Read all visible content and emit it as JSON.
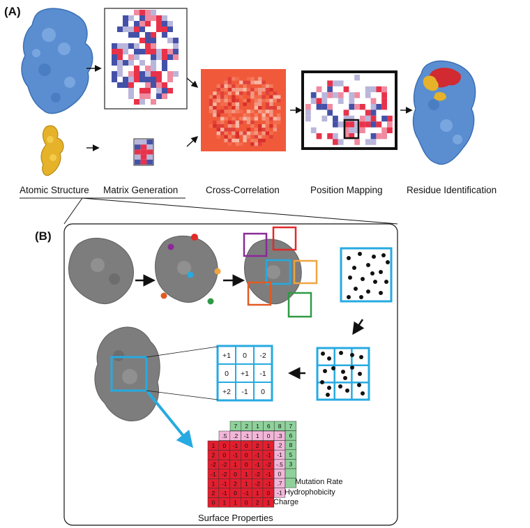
{
  "panel_a": {
    "label": "(A)",
    "steps": {
      "atomic_structure": "Atomic Structure",
      "matrix_generation": "Matrix Generation",
      "cross_correlation": "Cross-Correlation",
      "position_mapping": "Position Mapping",
      "residue_identification": "Residue Identification"
    }
  },
  "panel_b": {
    "label": "(B)",
    "surface_properties_title": "Surface Properties",
    "layers": {
      "mutation_rate": "Mutation Rate",
      "hydrophobicity": "Hydrophobicity",
      "charge": "Charge"
    },
    "grid_values": [
      [
        "+1",
        "0",
        "-2"
      ],
      [
        "0",
        "+1",
        "-1"
      ],
      [
        "+2",
        "-1",
        "0"
      ]
    ],
    "mutation_rate_values": {
      "top_row": [
        "7",
        "2",
        "1",
        "6",
        "8",
        "7"
      ],
      "right_column": [
        "6",
        "8",
        "5",
        "3",
        ""
      ]
    },
    "hydrophobicity_values": {
      "top_row": [
        ".5",
        ".2",
        "-1",
        "1",
        "0",
        ".3"
      ],
      "right_column": [
        ".2",
        "-1",
        "-.5",
        "0",
        ".7",
        "-1"
      ]
    },
    "charge_values": [
      [
        "1",
        "0",
        "-1",
        "0",
        "2",
        "1"
      ],
      [
        "2",
        "0",
        "-1",
        "0",
        "-1",
        "-1"
      ],
      [
        "-2",
        "-2",
        "1",
        "0",
        "-1",
        "-2"
      ],
      [
        "-1",
        "-2",
        "0",
        "1",
        "-2",
        "-1"
      ],
      [
        "1",
        "-1",
        "2",
        "1",
        "-2",
        "-1"
      ],
      [
        "2",
        "-1",
        "0",
        "-1",
        "1",
        "0"
      ],
      [
        "0",
        "1",
        "1",
        "0",
        "2",
        "1"
      ]
    ]
  },
  "colors": {
    "protein_blue": "#5b8ed1",
    "ligand_gold": "#e5b22a",
    "matrix_red": "#e8324a",
    "matrix_blue": "#4451a8",
    "matrix_pink": "#f08aa0",
    "matrix_lavender": "#b9b6dc",
    "correlation_bg": "#f05a3a",
    "grey_protein": "#7d7d7d",
    "box_blue": "#26aae1",
    "box_purple": "#8a2a97",
    "box_red": "#e12a2a",
    "box_orange": "#f0a540",
    "box_darkorange": "#e35a22",
    "box_green": "#2e9a45",
    "charge_red": "#e31e2e",
    "hydro_pink": "#f2b6d8",
    "mutation_green": "#8ed19a"
  },
  "icons": {
    "step_arrow": "arrow-right-icon",
    "pointer_arrow": "arrow-down-left-icon"
  }
}
